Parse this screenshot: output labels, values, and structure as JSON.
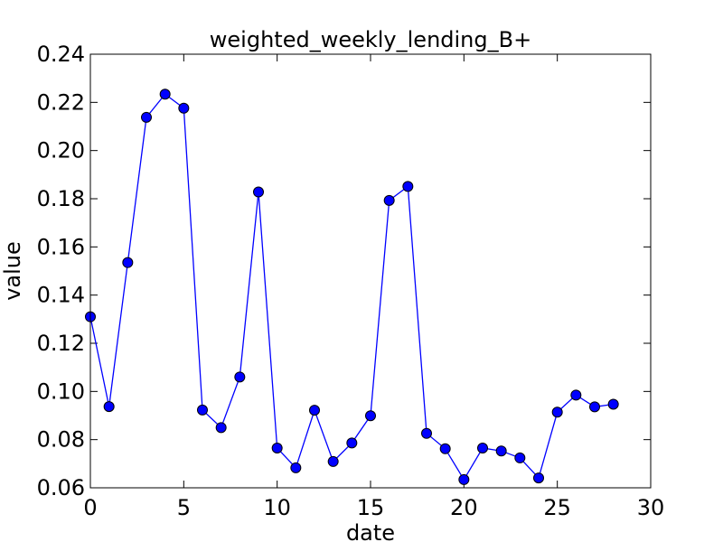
{
  "chart_data": {
    "type": "line",
    "title": "weighted_weekly_lending_B+",
    "xlabel": "date",
    "ylabel": "value",
    "xlim": [
      0,
      30
    ],
    "ylim": [
      0.06,
      0.24
    ],
    "xticks": [
      "0",
      "5",
      "10",
      "15",
      "20",
      "25",
      "30"
    ],
    "yticks": [
      "0.06",
      "0.08",
      "0.10",
      "0.12",
      "0.14",
      "0.16",
      "0.18",
      "0.20",
      "0.22",
      "0.24"
    ],
    "grid": false,
    "legend": false,
    "colors": {
      "line": "#0000ff",
      "marker": "#0000ff",
      "marker_edge": "#000000"
    },
    "x": [
      0,
      1,
      2,
      3,
      4,
      5,
      6,
      7,
      8,
      9,
      10,
      11,
      12,
      13,
      14,
      15,
      16,
      17,
      18,
      19,
      20,
      21,
      22,
      23,
      24,
      25,
      26,
      27,
      28
    ],
    "series": [
      {
        "values": [
          0.131,
          0.0937,
          0.1535,
          0.2138,
          0.2234,
          0.2176,
          0.0923,
          0.085,
          0.106,
          0.1828,
          0.0765,
          0.0683,
          0.0922,
          0.0709,
          0.0786,
          0.0899,
          0.1793,
          0.1851,
          0.0826,
          0.0762,
          0.0634,
          0.0765,
          0.0753,
          0.0724,
          0.0641,
          0.0914,
          0.0985,
          0.0936,
          0.0947
        ]
      }
    ]
  }
}
